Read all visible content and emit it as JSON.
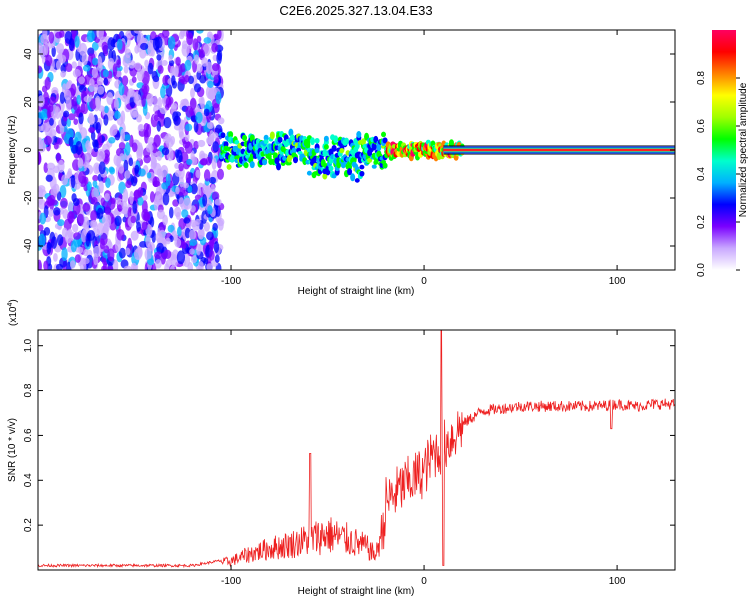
{
  "title": "C2E6.2025.327.13.04.E33",
  "chart_data": [
    {
      "type": "heatmap",
      "name": "spectrogram",
      "xlabel": "Height of straight line (km)",
      "ylabel": "Frequency (Hz)",
      "xlim": [
        -200,
        130
      ],
      "ylim": [
        -50,
        50
      ],
      "xticks": [
        -100,
        0,
        100
      ],
      "yticks": [
        -40,
        -20,
        0,
        20,
        40
      ],
      "xtick_labels": [
        "-100",
        "0",
        "100"
      ],
      "ytick_labels": [
        "-40",
        "-20",
        "0",
        "20",
        "40"
      ],
      "noise_region_x": [
        -200,
        -105
      ],
      "carrier_band_hz": [
        -1.5,
        1.5
      ],
      "colorbar": {
        "label": "Normalized spectral amplitude",
        "range": [
          0,
          1
        ],
        "ticks": [
          0.0,
          0.2,
          0.4,
          0.6,
          0.8
        ],
        "tick_labels": [
          "0.0",
          "0.2",
          "0.4",
          "0.6",
          "0.8"
        ],
        "colors": [
          "#ffffff",
          "#c9a8ff",
          "#7a00ff",
          "#0000ff",
          "#00b0ff",
          "#00ffcc",
          "#00ff00",
          "#a0ff00",
          "#ffff00",
          "#ff8000",
          "#ff0000",
          "#ff0060"
        ]
      }
    },
    {
      "type": "line",
      "name": "snr",
      "xlabel": "Height of straight line (km)",
      "ylabel": "SNR (10 * v/v)",
      "y_multiplier": "(x10",
      "y_multiplier_exp": "4",
      "y_multiplier_close": ")",
      "xlim": [
        -200,
        130
      ],
      "ylim": [
        0,
        1.07
      ],
      "xticks": [
        -100,
        0,
        100
      ],
      "yticks": [
        0.2,
        0.4,
        0.6,
        0.8,
        1.0
      ],
      "xtick_labels": [
        "-100",
        "0",
        "100"
      ],
      "ytick_labels": [
        "0.2",
        "0.4",
        "0.6",
        "0.8",
        "1.0"
      ],
      "color": "#ee2020",
      "envelope": {
        "x": [
          -200,
          -120,
          -100,
          -90,
          -80,
          -70,
          -60,
          -50,
          -40,
          -30,
          -25,
          -20,
          -10,
          0,
          5,
          10,
          15,
          20,
          25,
          30,
          40,
          50,
          60,
          70,
          80,
          90,
          100,
          110,
          120,
          130
        ],
        "y": [
          0.02,
          0.02,
          0.05,
          0.09,
          0.12,
          0.14,
          0.17,
          0.2,
          0.17,
          0.13,
          0.08,
          0.3,
          0.38,
          0.44,
          0.52,
          0.55,
          0.6,
          0.65,
          0.68,
          0.71,
          0.72,
          0.73,
          0.73,
          0.73,
          0.73,
          0.73,
          0.74,
          0.73,
          0.74,
          0.74
        ]
      },
      "spikes": [
        {
          "x": -59,
          "y": 0.52
        },
        {
          "x": 9,
          "y": 1.07
        },
        {
          "x": 10,
          "y": 0.02
        },
        {
          "x": 97,
          "y": 0.63
        }
      ]
    }
  ]
}
